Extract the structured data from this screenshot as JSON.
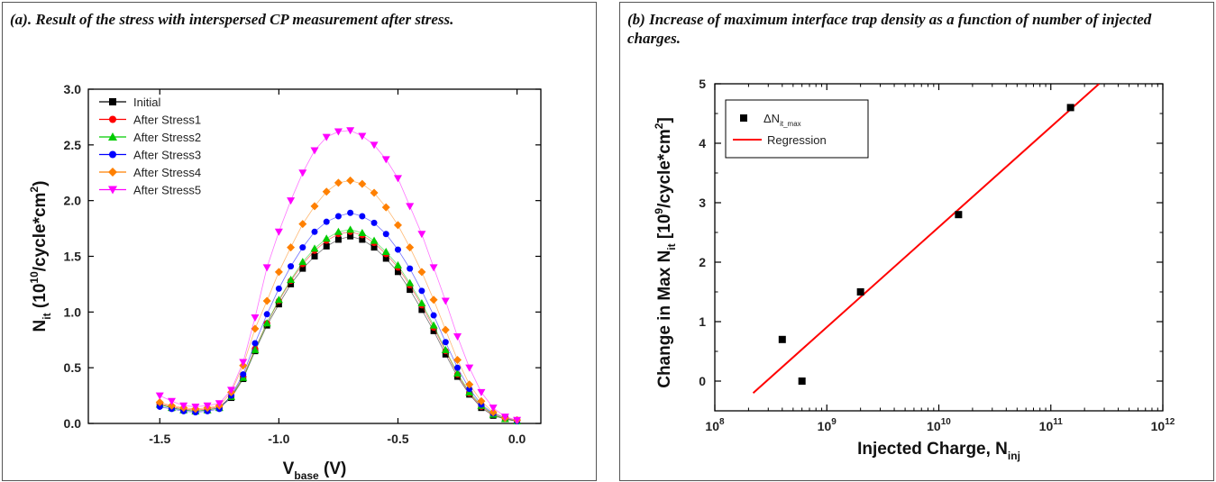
{
  "panels": {
    "a": {
      "caption": "(a). Result of the stress with interspersed CP measurement after stress."
    },
    "b": {
      "caption": "(b) Increase of maximum interface trap density as a function of number of injected charges."
    }
  },
  "chart_data": [
    {
      "type": "scatter",
      "xlim": [
        -1.8,
        0.1
      ],
      "ylim": [
        0.0,
        3.0
      ],
      "x_ticks": [
        -1.5,
        -1.0,
        -0.5,
        0.0
      ],
      "x_tick_labels": [
        "-1.5",
        "-1.0",
        "-0.5",
        "0.0"
      ],
      "y_ticks": [
        0.0,
        0.5,
        1.0,
        1.5,
        2.0,
        2.5,
        3.0
      ],
      "y_tick_labels": [
        "0.0",
        "0.5",
        "1.0",
        "1.5",
        "2.0",
        "2.5",
        "3.0"
      ],
      "xlabel": {
        "main": "V",
        "sub": "base",
        "tail": " (V)"
      },
      "ylabel": {
        "main": "N",
        "sub": "it",
        "p1": " (10",
        "sup": "10",
        "p2": "/cycle*cm",
        "sup2": "2",
        "p3": ")"
      },
      "legend_position": "top-left",
      "x": [
        -1.5,
        -1.45,
        -1.4,
        -1.35,
        -1.3,
        -1.25,
        -1.2,
        -1.15,
        -1.1,
        -1.05,
        -1.0,
        -0.95,
        -0.9,
        -0.85,
        -0.8,
        -0.75,
        -0.7,
        -0.65,
        -0.6,
        -0.55,
        -0.5,
        -0.45,
        -0.4,
        -0.35,
        -0.3,
        -0.25,
        -0.2,
        -0.15,
        -0.1,
        -0.05,
        0.0
      ],
      "series": [
        {
          "name": "Initial",
          "color": "#000000",
          "marker": "square",
          "values": [
            0.17,
            0.14,
            0.12,
            0.11,
            0.12,
            0.14,
            0.23,
            0.4,
            0.65,
            0.88,
            1.07,
            1.25,
            1.39,
            1.5,
            1.59,
            1.65,
            1.68,
            1.65,
            1.58,
            1.48,
            1.36,
            1.2,
            1.02,
            0.83,
            0.62,
            0.42,
            0.26,
            0.14,
            0.07,
            0.04,
            0.02
          ]
        },
        {
          "name": "After Stress1",
          "color": "#ff0000",
          "marker": "circle",
          "values": [
            0.18,
            0.15,
            0.13,
            0.12,
            0.13,
            0.15,
            0.24,
            0.42,
            0.67,
            0.9,
            1.1,
            1.28,
            1.43,
            1.55,
            1.64,
            1.7,
            1.72,
            1.69,
            1.62,
            1.52,
            1.4,
            1.24,
            1.06,
            0.86,
            0.65,
            0.44,
            0.27,
            0.15,
            0.08,
            0.04,
            0.02
          ]
        },
        {
          "name": "After Stress2",
          "color": "#00cc00",
          "marker": "triangle-up",
          "values": [
            0.17,
            0.14,
            0.12,
            0.11,
            0.12,
            0.14,
            0.24,
            0.41,
            0.66,
            0.9,
            1.11,
            1.29,
            1.45,
            1.57,
            1.66,
            1.72,
            1.74,
            1.71,
            1.64,
            1.54,
            1.42,
            1.26,
            1.08,
            0.88,
            0.66,
            0.45,
            0.28,
            0.16,
            0.08,
            0.04,
            0.02
          ]
        },
        {
          "name": "After Stress3",
          "color": "#0000ff",
          "marker": "circle",
          "values": [
            0.15,
            0.13,
            0.11,
            0.1,
            0.11,
            0.13,
            0.25,
            0.44,
            0.72,
            0.98,
            1.21,
            1.41,
            1.58,
            1.72,
            1.81,
            1.86,
            1.89,
            1.86,
            1.8,
            1.7,
            1.56,
            1.39,
            1.19,
            0.97,
            0.73,
            0.5,
            0.31,
            0.17,
            0.09,
            0.05,
            0.02
          ]
        },
        {
          "name": "After Stress4",
          "color": "#ff8000",
          "marker": "diamond",
          "values": [
            0.19,
            0.16,
            0.14,
            0.13,
            0.14,
            0.16,
            0.28,
            0.52,
            0.85,
            1.1,
            1.36,
            1.58,
            1.79,
            1.95,
            2.08,
            2.16,
            2.18,
            2.15,
            2.07,
            1.94,
            1.78,
            1.58,
            1.36,
            1.11,
            0.84,
            0.57,
            0.35,
            0.2,
            0.1,
            0.05,
            0.03
          ]
        },
        {
          "name": "After Stress5",
          "color": "#ff00ff",
          "marker": "triangle-down",
          "values": [
            0.25,
            0.2,
            0.16,
            0.15,
            0.16,
            0.18,
            0.3,
            0.55,
            0.95,
            1.4,
            1.72,
            2.0,
            2.25,
            2.45,
            2.57,
            2.62,
            2.63,
            2.58,
            2.5,
            2.37,
            2.2,
            1.95,
            1.7,
            1.4,
            1.1,
            0.78,
            0.5,
            0.28,
            0.14,
            0.06,
            0.03
          ]
        }
      ]
    },
    {
      "type": "scatter",
      "xscale": "log",
      "xlim": [
        100000000,
        1000000000000
      ],
      "ylim": [
        -0.5,
        5.0
      ],
      "x_ticks": [
        100000000,
        1000000000,
        10000000000,
        100000000000,
        1000000000000
      ],
      "x_tick_labels": [
        {
          "base": "10",
          "exp": "8"
        },
        {
          "base": "10",
          "exp": "9"
        },
        {
          "base": "10",
          "exp": "10"
        },
        {
          "base": "10",
          "exp": "11"
        },
        {
          "base": "10",
          "exp": "12"
        }
      ],
      "y_ticks": [
        0,
        1,
        2,
        3,
        4,
        5
      ],
      "y_tick_labels": [
        "0",
        "1",
        "2",
        "3",
        "4",
        "5"
      ],
      "xlabel": {
        "main": "Injected Charge, N",
        "sub": "inj"
      },
      "ylabel": {
        "main": "Change in Max N",
        "sub": "it",
        "p1": " [10",
        "sup": "9",
        "p2": "/cycle*cm",
        "sup2": "2",
        "p3": "]"
      },
      "legend_position": "top-left",
      "series": [
        {
          "name": "ΔN",
          "name_sub": "it_max",
          "color": "#000000",
          "marker": "square",
          "x": [
            400000000,
            600000000,
            2000000000,
            15000000000,
            150000000000
          ],
          "values": [
            0.7,
            0.0,
            1.5,
            2.8,
            4.6
          ]
        },
        {
          "name": "Regression",
          "color": "#ff0000",
          "marker": "line",
          "x": [
            220000000,
            270000000000
          ],
          "values": [
            -0.2,
            5.0
          ]
        }
      ]
    }
  ]
}
